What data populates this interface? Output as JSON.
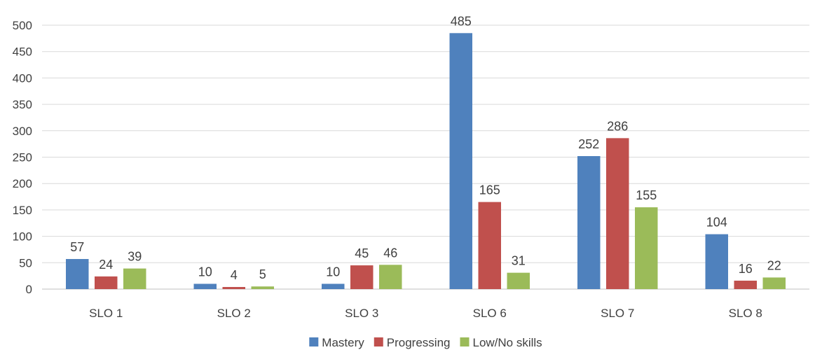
{
  "chart_data": {
    "type": "bar",
    "title": "",
    "xlabel": "",
    "ylabel": "",
    "categories": [
      "SLO 1",
      "SLO 2",
      "SLO 3",
      "SLO 6",
      "SLO 7",
      "SLO 8"
    ],
    "series": [
      {
        "name": "Mastery",
        "values": [
          57,
          10,
          10,
          485,
          252,
          104
        ],
        "color": "#4f81bd"
      },
      {
        "name": "Progressing",
        "values": [
          24,
          4,
          45,
          165,
          286,
          16
        ],
        "color": "#c0504d"
      },
      {
        "name": "Low/No skills",
        "values": [
          39,
          5,
          46,
          31,
          155,
          22
        ],
        "color": "#9bbb59"
      }
    ],
    "ylim": [
      0,
      500
    ],
    "yticks": [
      0,
      50,
      100,
      150,
      200,
      250,
      300,
      350,
      400,
      450,
      500
    ],
    "grid": true,
    "legend_position": "bottom-center",
    "data_labels": true
  }
}
